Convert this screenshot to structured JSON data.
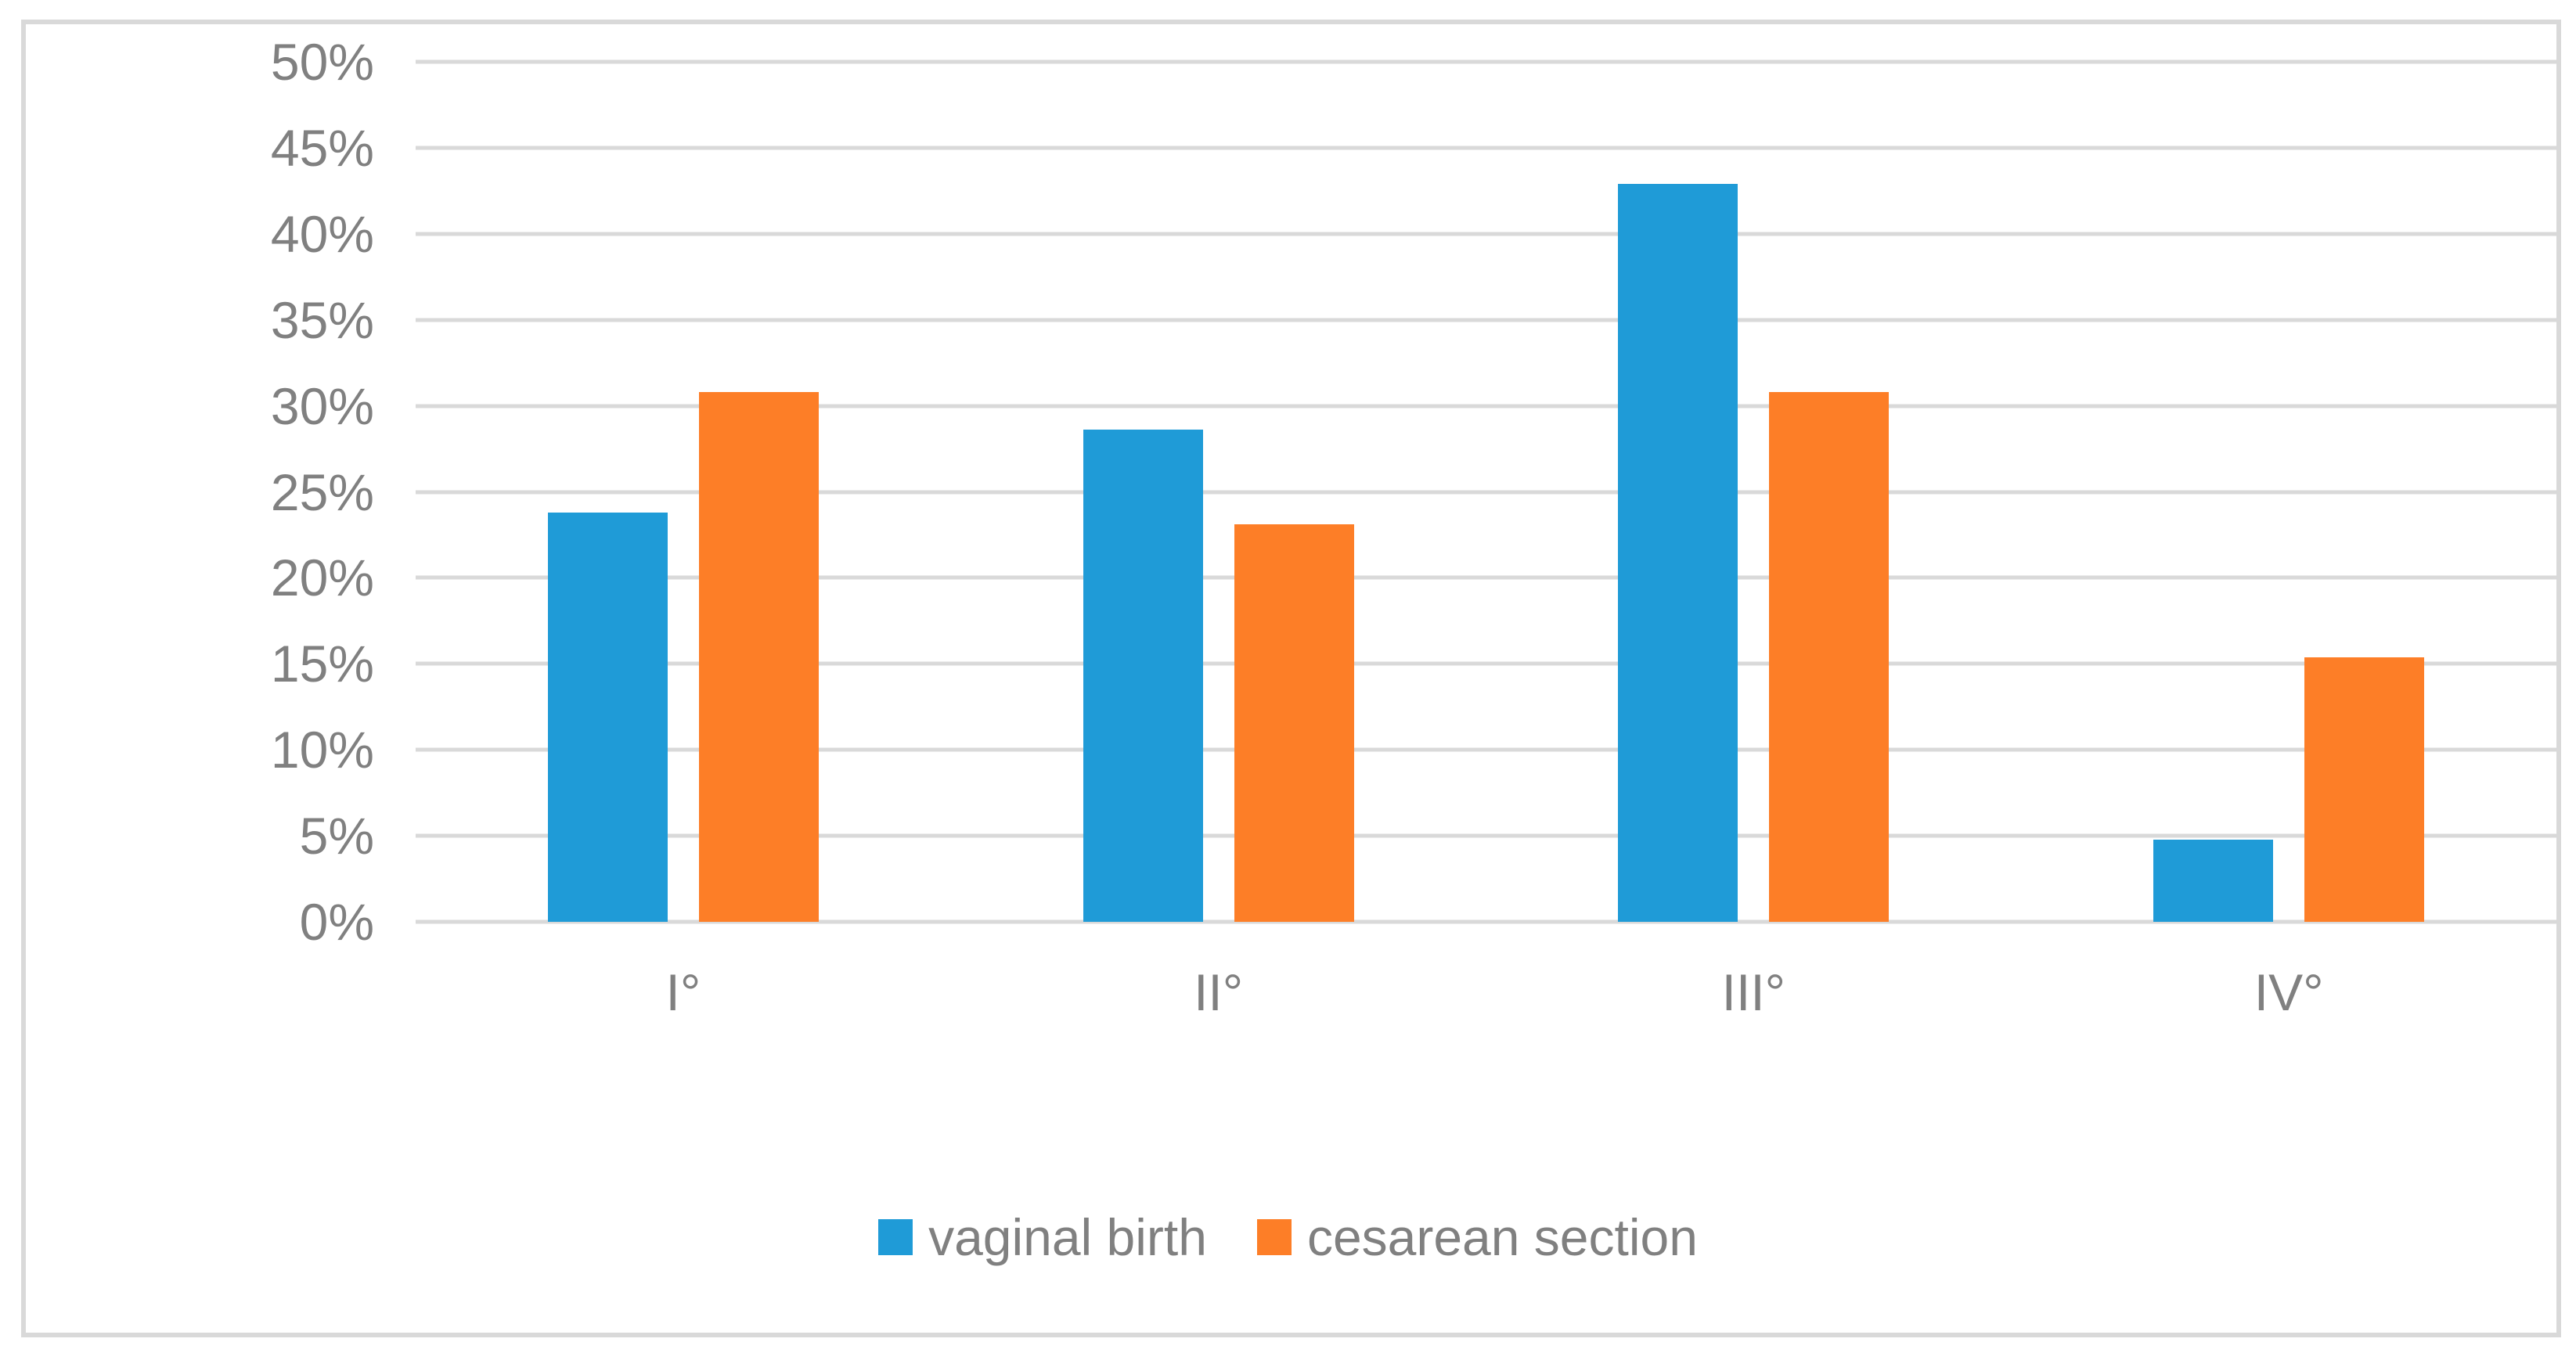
{
  "figure": {
    "background_color": "#FFFFFF",
    "frame_border_color": "#D9D9D9",
    "gridline_color": "#D9D9D9",
    "axis_text_color": "#808080"
  },
  "chart_data": {
    "type": "bar",
    "title": "",
    "xlabel": "",
    "ylabel": "",
    "categories": [
      "I°",
      "II°",
      "III°",
      "IV°"
    ],
    "series": [
      {
        "name": "vaginal birth",
        "color": "#1F9BD7",
        "values": [
          23.8,
          28.6,
          42.9,
          4.8
        ]
      },
      {
        "name": "cesarean section",
        "color": "#FD7E27",
        "values": [
          30.8,
          23.1,
          30.8,
          15.4
        ]
      }
    ],
    "y_ticks": [
      "50%",
      "45%",
      "40%",
      "35%",
      "30%",
      "25%",
      "20%",
      "15%",
      "10%",
      "5%",
      "0%"
    ],
    "y_tick_values": [
      50,
      45,
      40,
      35,
      30,
      25,
      20,
      15,
      10,
      5,
      0
    ],
    "ylim": [
      0,
      50
    ],
    "grid": true,
    "legend_position": "bottom-center"
  }
}
